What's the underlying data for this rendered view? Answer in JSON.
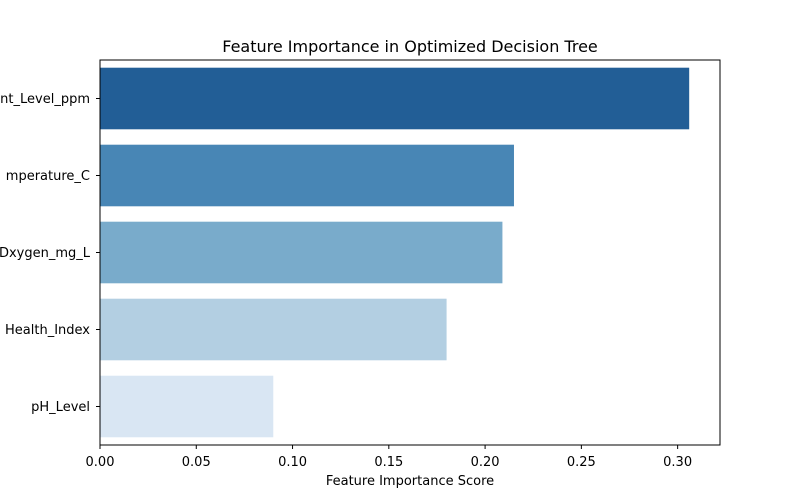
{
  "chart_data": {
    "type": "bar",
    "orientation": "horizontal",
    "title": "Feature Importance in Optimized Decision Tree",
    "xlabel": "Feature Importance Score",
    "ylabel": "",
    "xlim": [
      0.0,
      0.322
    ],
    "xticks": [
      "0.00",
      "0.05",
      "0.10",
      "0.15",
      "0.20",
      "0.25",
      "0.30"
    ],
    "grid": false,
    "legend": "none",
    "categories": [
      "nt_Level_ppm",
      "mperature_C",
      "Dxygen_mg_L",
      "Health_Index",
      "pH_Level"
    ],
    "values": [
      0.306,
      0.215,
      0.209,
      0.18,
      0.09
    ],
    "colors": [
      "#225e96",
      "#4886b5",
      "#79abcb",
      "#b3cfe2",
      "#d9e6f3"
    ]
  }
}
